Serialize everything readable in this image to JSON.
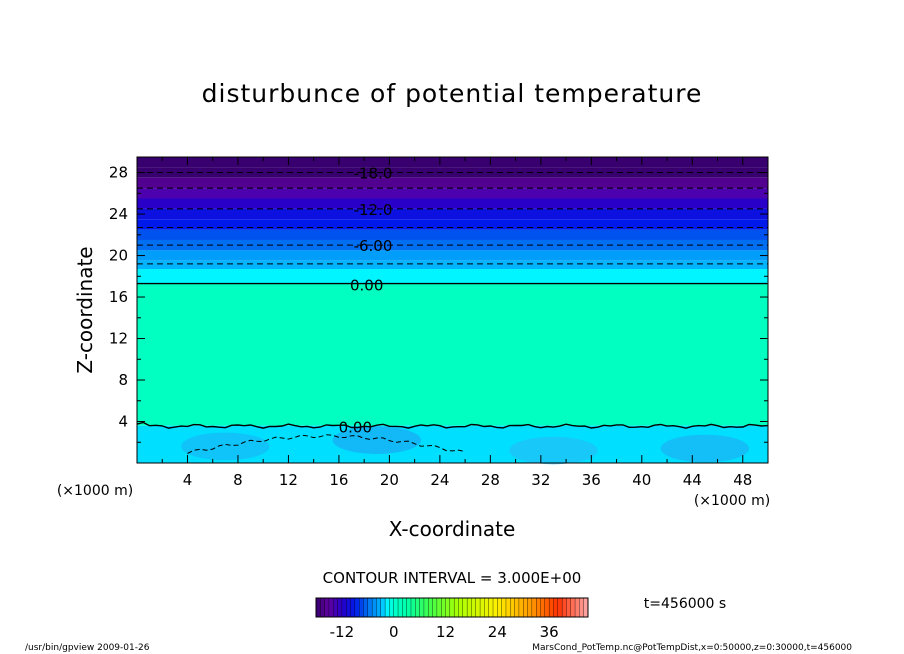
{
  "chart_data": {
    "type": "heatmap",
    "title": "disturbunce of potential temperature",
    "xlabel": "X-coordinate",
    "ylabel": "Z-coordinate",
    "xunit_left": "(×1000 m)",
    "xunit_right": "(×1000 m)",
    "xlim": [
      0,
      50
    ],
    "ylim": [
      0,
      29.5
    ],
    "x_ticks": [
      "4",
      "8",
      "12",
      "16",
      "20",
      "24",
      "28",
      "32",
      "36",
      "40",
      "44",
      "48"
    ],
    "y_ticks": [
      "4",
      "8",
      "12",
      "16",
      "20",
      "24",
      "28"
    ],
    "contour_interval": "CONTOUR INTERVAL = 3.000E+00",
    "contour_labels": [
      {
        "text": "-18.0",
        "x": 18.7,
        "z": 28.0
      },
      {
        "text": "-12.0",
        "x": 18.7,
        "z": 24.5
      },
      {
        "text": "-6.00",
        "x": 18.7,
        "z": 21.0
      },
      {
        "text": "0.00",
        "x": 18.2,
        "z": 17.2
      },
      {
        "text": "0.00",
        "x": 17.3,
        "z": 3.5
      }
    ],
    "bands": [
      {
        "z0": 28.5,
        "z1": 29.5,
        "value": -20
      },
      {
        "z0": 27.5,
        "z1": 28.5,
        "value": -18
      },
      {
        "z0": 26.5,
        "z1": 27.5,
        "value": -16
      },
      {
        "z0": 25.5,
        "z1": 26.5,
        "value": -14
      },
      {
        "z0": 24.5,
        "z1": 25.5,
        "value": -12
      },
      {
        "z0": 23.5,
        "z1": 24.5,
        "value": -10
      },
      {
        "z0": 22.5,
        "z1": 23.5,
        "value": -9
      },
      {
        "z0": 21.5,
        "z1": 22.5,
        "value": -7
      },
      {
        "z0": 20.5,
        "z1": 21.5,
        "value": -6
      },
      {
        "z0": 19.5,
        "z1": 20.5,
        "value": -4
      },
      {
        "z0": 18.7,
        "z1": 19.5,
        "value": -3
      },
      {
        "z0": 17.3,
        "z1": 18.7,
        "value": -1.5
      },
      {
        "z0": 3.6,
        "z1": 17.3,
        "value": 1
      },
      {
        "z0": 0,
        "z1": 3.6,
        "value": -2
      }
    ],
    "dashed_contours_z": [
      28.0,
      26.5,
      24.5,
      22.7,
      21.0,
      19.2
    ],
    "colorbar": {
      "min": -18,
      "max": 45,
      "tick_labels": [
        "-12",
        "0",
        "12",
        "24",
        "36"
      ],
      "tick_values": [
        -12,
        0,
        12,
        24,
        36
      ]
    },
    "time_label": "t=456000 s"
  },
  "footer": {
    "left": "/usr/bin/gpview  2009-01-26",
    "right": "MarsCond_PotTemp.nc@PotTempDist,x=0:50000,z=0:30000,t=456000"
  }
}
